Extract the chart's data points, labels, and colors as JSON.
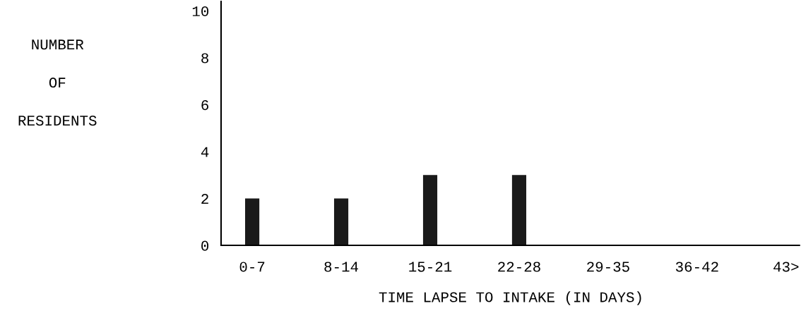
{
  "chart_data": {
    "type": "bar",
    "xlabel": "TIME LAPSE TO INTAKE (IN DAYS)",
    "ylabel": "NUMBER\n\nOF\n\nRESIDENTS",
    "categories": [
      "0-7",
      "8-14",
      "15-21",
      "22-28",
      "29-35",
      "36-42",
      "43>"
    ],
    "values": [
      2,
      2,
      3,
      3,
      0,
      0,
      0
    ],
    "color": "#1a1a1a",
    "ylim": [
      0,
      10.4
    ],
    "yticks": [
      0,
      2,
      4,
      6,
      8,
      10
    ],
    "grid": false
  }
}
